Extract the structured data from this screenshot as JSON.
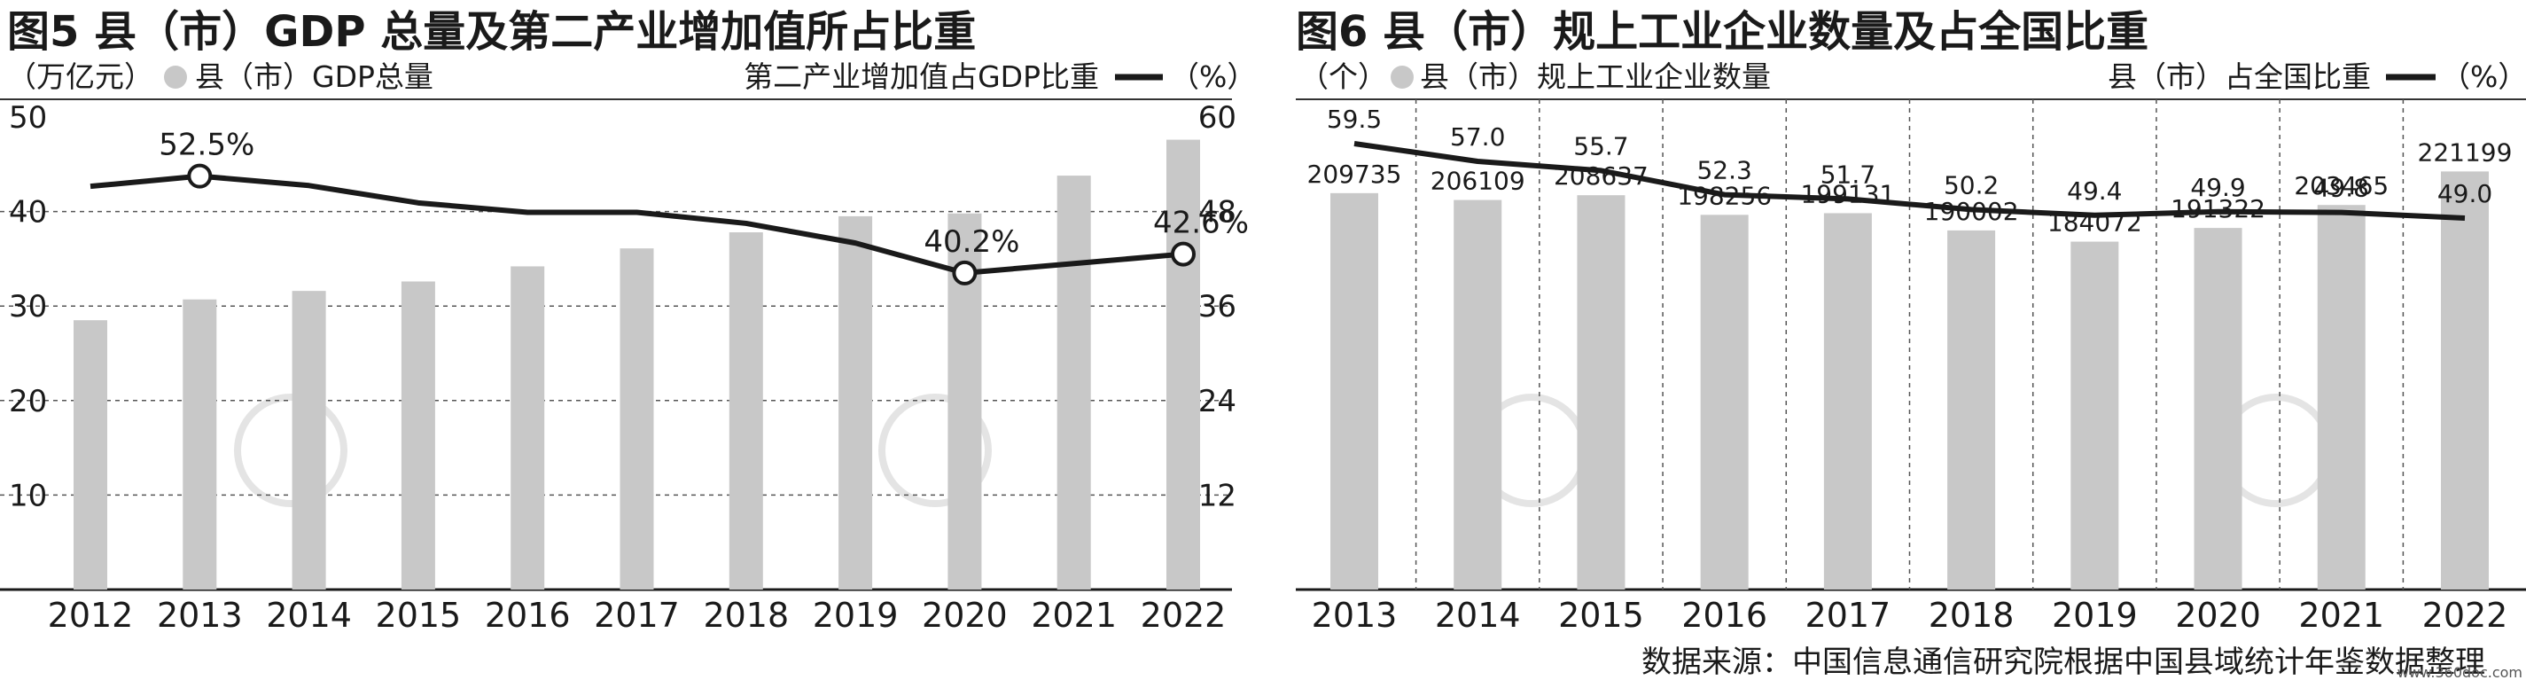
{
  "source": "数据来源：中国信息通信研究院根据中国县域统计年鉴数据整理",
  "watermark": "www.360doc.com",
  "colors": {
    "bar": "#c8c8c8",
    "line": "#1a1a1a",
    "grid": "#555555",
    "text": "#1a1a1a"
  },
  "chart_data": [
    {
      "type": "bar+line",
      "title": "图5 县（市）GDP 总量及第二产业增加值所占比重",
      "left_legend": "（万亿元）",
      "bar_legend": "县（市）GDP总量",
      "right_legend": "第二产业增加值占GDP比重",
      "line_legend_unit": "（%）",
      "categories": [
        "2012",
        "2013",
        "2014",
        "2015",
        "2016",
        "2017",
        "2018",
        "2019",
        "2020",
        "2021",
        "2022"
      ],
      "bar_series": {
        "name": "县（市）GDP总量",
        "values": [
          28.5,
          30.7,
          31.6,
          32.6,
          34.2,
          36.1,
          37.8,
          39.5,
          39.8,
          43.8,
          47.6
        ]
      },
      "line_series": {
        "name": "第二产业增加值占GDP比重",
        "values": [
          51.2,
          52.5,
          51.3,
          49.1,
          47.9,
          47.9,
          46.5,
          44.0,
          40.2,
          41.4,
          42.6
        ]
      },
      "annotated_points": [
        {
          "index": 1,
          "label": "52.5%"
        },
        {
          "index": 8,
          "label": "40.2%"
        },
        {
          "index": 10,
          "label": "42.6%"
        }
      ],
      "left_axis": {
        "range": [
          0,
          50
        ],
        "ticks": [
          10,
          20,
          30,
          40,
          50
        ]
      },
      "right_axis": {
        "range": [
          0,
          60
        ],
        "ticks": [
          12,
          24,
          36,
          48,
          60
        ]
      }
    },
    {
      "type": "bar+line",
      "title": "图6 县（市）规上工业企业数量及占全国比重",
      "left_legend": "（个）",
      "bar_legend": "县（市）规上工业企业数量",
      "right_legend": "县（市）占全国比重",
      "line_legend_unit": "（%）",
      "categories": [
        "2013",
        "2014",
        "2015",
        "2016",
        "2017",
        "2018",
        "2019",
        "2020",
        "2021",
        "2022"
      ],
      "bar_series": {
        "name": "县（市）规上工业企业数量",
        "values": [
          209735,
          206109,
          208637,
          198256,
          199131,
          190002,
          184072,
          191322,
          203465,
          221199
        ]
      },
      "line_series": {
        "name": "县（市）占全国比重",
        "values": [
          59.5,
          57.0,
          55.7,
          52.3,
          51.7,
          50.2,
          49.4,
          49.9,
          49.8,
          49.0
        ]
      }
    }
  ]
}
